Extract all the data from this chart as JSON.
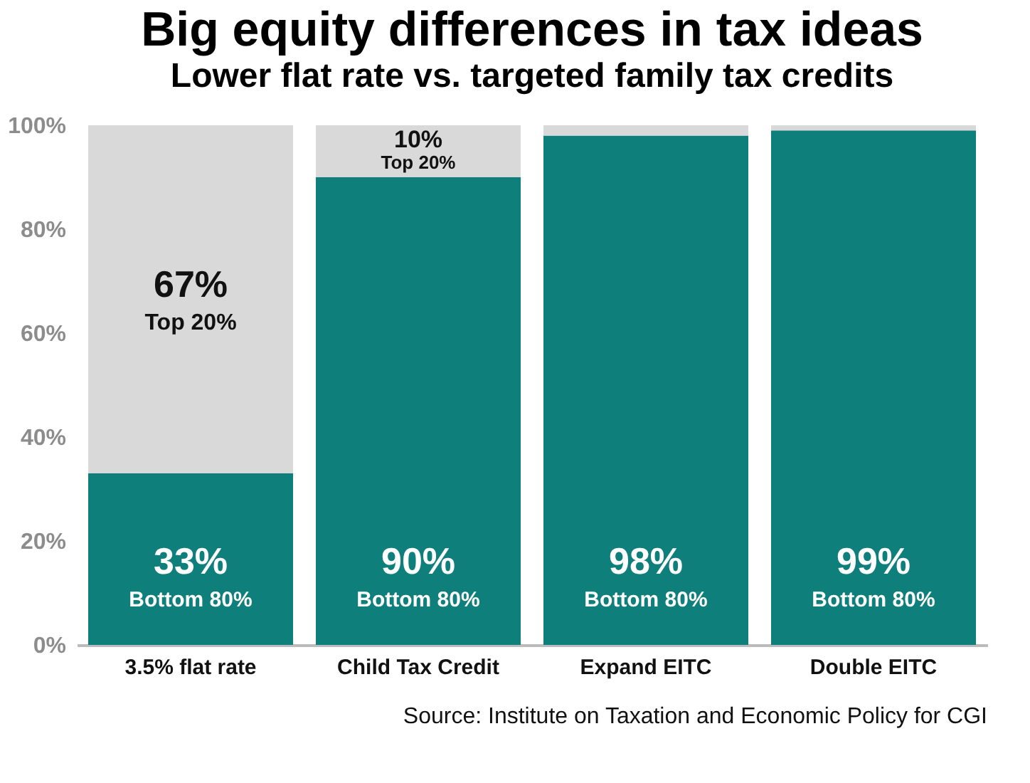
{
  "chart_data": {
    "type": "bar",
    "stacked": true,
    "title": "Big equity differences in tax ideas",
    "subtitle": "Lower flat rate vs. targeted family tax credits",
    "categories": [
      "3.5% flat rate",
      "Child Tax Credit",
      "Expand EITC",
      "Double EITC"
    ],
    "series": [
      {
        "name": "Bottom 80%",
        "color": "#0f7f7c",
        "values": [
          33,
          90,
          98,
          99
        ],
        "value_labels": [
          "33%",
          "90%",
          "98%",
          "99%"
        ]
      },
      {
        "name": "Top 20%",
        "color": "#d9d9d9",
        "values": [
          67,
          10,
          2,
          1
        ],
        "value_labels": [
          "67%",
          "10%",
          null,
          null
        ]
      }
    ],
    "ylim": [
      0,
      100
    ],
    "yticks": [
      {
        "value": 0,
        "label": "0%"
      },
      {
        "value": 20,
        "label": "20%"
      },
      {
        "value": 40,
        "label": "40%"
      },
      {
        "value": 60,
        "label": "60%"
      },
      {
        "value": 80,
        "label": "80%"
      },
      {
        "value": 100,
        "label": "100%"
      }
    ],
    "grid": false,
    "legend": false,
    "annotations": [
      "Source: Institute on Taxation and Economic Policy for CGI"
    ]
  }
}
